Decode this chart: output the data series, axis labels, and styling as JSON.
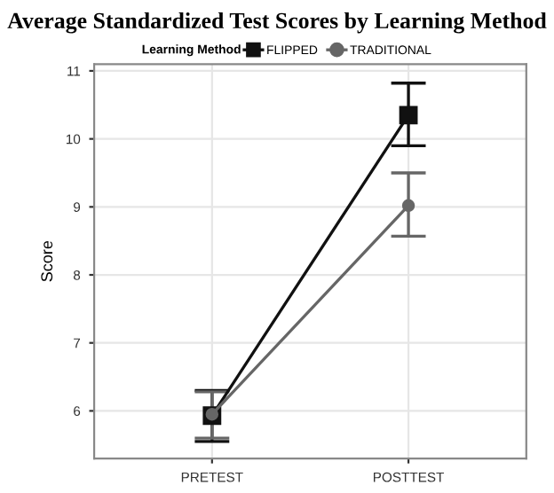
{
  "chart_data": {
    "type": "line",
    "title": "Average Standardized Test Scores by Learning Method",
    "ylabel": "Score",
    "legend_title": "Learning Method",
    "categories": [
      "PRETEST",
      "POSTTEST"
    ],
    "series": [
      {
        "name": "FLIPPED",
        "color": "#111111",
        "values": [
          5.93,
          10.35
        ],
        "errors": [
          [
            5.55,
            6.3
          ],
          [
            9.9,
            10.82
          ]
        ],
        "marker": "square"
      },
      {
        "name": "TRADITIONAL",
        "color": "#666666",
        "values": [
          5.95,
          9.02
        ],
        "errors": [
          [
            5.6,
            6.28
          ],
          [
            8.57,
            9.5
          ]
        ],
        "marker": "circle"
      }
    ],
    "ylim": [
      5.3,
      11.1
    ],
    "yticks": [
      6,
      7,
      8,
      9,
      10,
      11
    ],
    "grid": true,
    "legend": "top"
  }
}
